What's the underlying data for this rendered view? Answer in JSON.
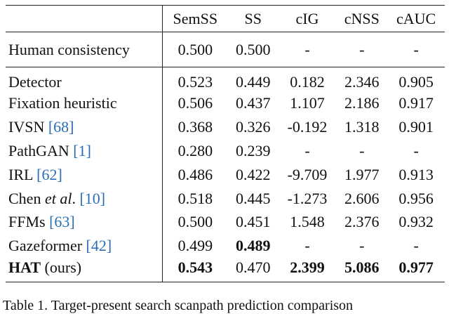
{
  "table": {
    "header": [
      "SemSS",
      "SS",
      "cIG",
      "cNSS",
      "cAUC"
    ],
    "human": {
      "method": "Human consistency",
      "values": [
        "0.500",
        "0.500",
        "-",
        "-",
        "-"
      ]
    },
    "rows": [
      {
        "method": "Detector",
        "values": [
          "0.523",
          "0.449",
          "0.182",
          "2.346",
          "0.905"
        ]
      },
      {
        "method": "Fixation heuristic",
        "values": [
          "0.506",
          "0.437",
          "1.107",
          "2.186",
          "0.917"
        ]
      },
      {
        "method": "IVSN",
        "cite": "[68]",
        "values": [
          "0.368",
          "0.326",
          "-0.192",
          "1.318",
          "0.901"
        ]
      },
      {
        "method": "PathGAN",
        "cite": "[1]",
        "values": [
          "0.280",
          "0.239",
          "-",
          "-",
          "-"
        ]
      },
      {
        "method": "IRL",
        "cite": "[62]",
        "values": [
          "0.486",
          "0.422",
          "-9.709",
          "1.977",
          "0.913"
        ]
      },
      {
        "method": "Chen",
        "italic": "et al",
        "suffix": ".",
        "cite": "[10]",
        "values": [
          "0.518",
          "0.445",
          "-1.273",
          "2.606",
          "0.956"
        ]
      },
      {
        "method": "FFMs",
        "cite": "[63]",
        "values": [
          "0.500",
          "0.451",
          "1.548",
          "2.376",
          "0.932"
        ]
      },
      {
        "method": "Gazeformer",
        "cite": "[42]",
        "values": [
          "0.499",
          "0.489",
          "-",
          "-",
          "-"
        ]
      },
      {
        "method": "HAT",
        "note": "(ours)",
        "values": [
          "0.543",
          "0.470",
          "2.399",
          "5.086",
          "0.977"
        ]
      }
    ],
    "bold": [
      [
        7,
        1
      ],
      [
        8,
        0
      ],
      [
        8,
        2
      ],
      [
        8,
        3
      ],
      [
        8,
        4
      ]
    ]
  },
  "caption": "Table 1. Target-present search scanpath prediction comparison"
}
